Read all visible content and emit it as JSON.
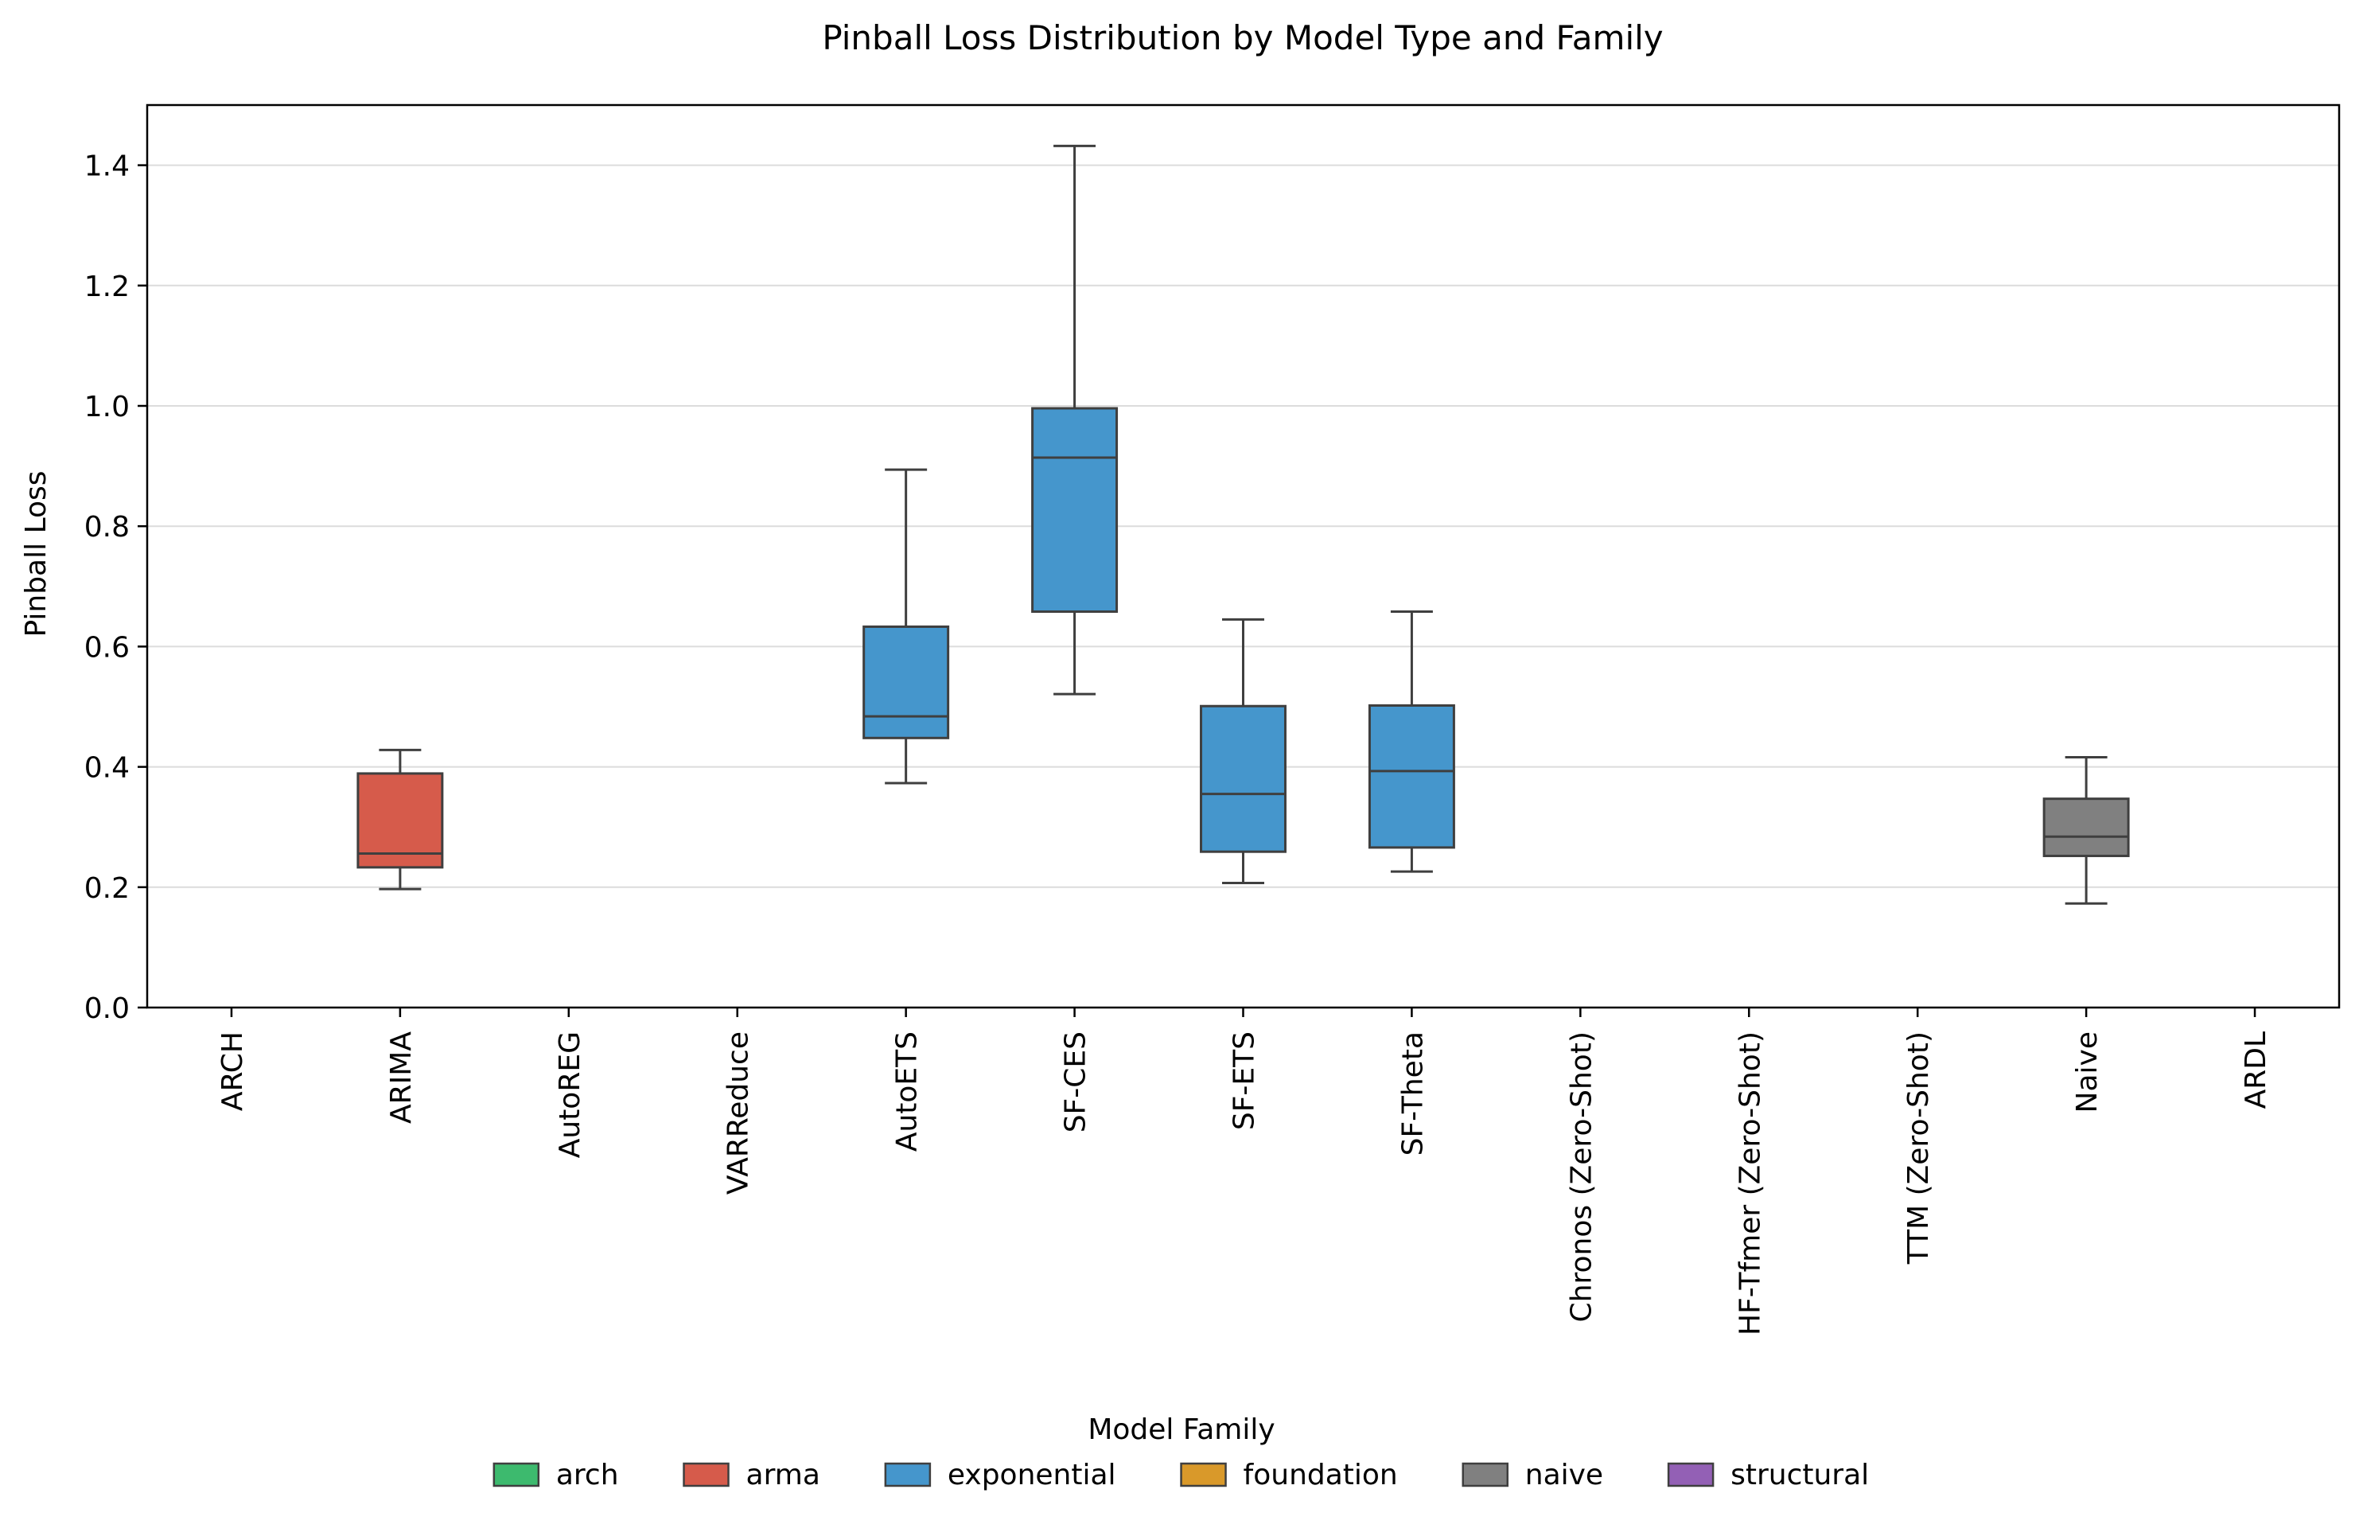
{
  "chart_data": {
    "type": "box",
    "title": "Pinball Loss Distribution by Model Type and Family",
    "xlabel": "",
    "ylabel": "Pinball Loss",
    "ylim": [
      0,
      1.5
    ],
    "yticks": [
      0.0,
      0.2,
      0.4,
      0.6,
      0.8,
      1.0,
      1.2,
      1.4
    ],
    "ytick_labels": [
      "0.0",
      "0.2",
      "0.4",
      "0.6",
      "0.8",
      "1.0",
      "1.2",
      "1.4"
    ],
    "grid": "horizontal",
    "categories": [
      "ARCH",
      "ARIMA",
      "AutoREG",
      "VARReduce",
      "AutoETS",
      "SF-CES",
      "SF-ETS",
      "SF-Theta",
      "Chronos (Zero-Shot)",
      "HF-Tfmer (Zero-Shot)",
      "TTM (Zero-Shot)",
      "Naive",
      "ARDL"
    ],
    "boxes": [
      {
        "category": "ARIMA",
        "family": "arma",
        "whisker_low": 0.197,
        "q1": 0.233,
        "median": 0.256,
        "q3": 0.389,
        "whisker_high": 0.428
      },
      {
        "category": "AutoETS",
        "family": "exponential",
        "whisker_low": 0.373,
        "q1": 0.448,
        "median": 0.484,
        "q3": 0.633,
        "whisker_high": 0.894
      },
      {
        "category": "SF-CES",
        "family": "exponential",
        "whisker_low": 0.521,
        "q1": 0.658,
        "median": 0.914,
        "q3": 0.996,
        "whisker_high": 1.432
      },
      {
        "category": "SF-ETS",
        "family": "exponential",
        "whisker_low": 0.207,
        "q1": 0.259,
        "median": 0.355,
        "q3": 0.501,
        "whisker_high": 0.645
      },
      {
        "category": "SF-Theta",
        "family": "exponential",
        "whisker_low": 0.226,
        "q1": 0.266,
        "median": 0.393,
        "q3": 0.502,
        "whisker_high": 0.658
      },
      {
        "category": "Naive",
        "family": "naive",
        "whisker_low": 0.173,
        "q1": 0.252,
        "median": 0.284,
        "q3": 0.347,
        "whisker_high": 0.416
      }
    ],
    "legend": {
      "title": "Model Family",
      "placement": "bottom-center",
      "entries": [
        {
          "label": "arch",
          "color": "#3dba6e"
        },
        {
          "label": "arma",
          "color": "#d65b4b"
        },
        {
          "label": "exponential",
          "color": "#4596cc"
        },
        {
          "label": "foundation",
          "color": "#d9992a"
        },
        {
          "label": "naive",
          "color": "#808080"
        },
        {
          "label": "structural",
          "color": "#9360b5"
        }
      ]
    },
    "colors": {
      "arch": "#3dba6e",
      "arma": "#d65b4b",
      "exponential": "#4596cc",
      "foundation": "#d9992a",
      "naive": "#808080",
      "structural": "#9360b5"
    }
  }
}
